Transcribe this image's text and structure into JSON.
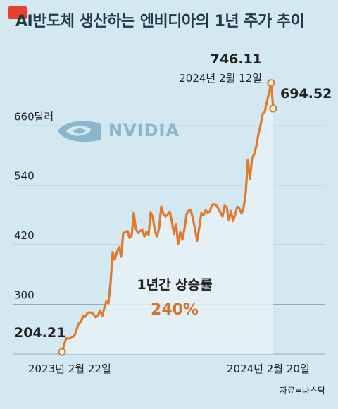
{
  "title": "AI반도체 생산하는 엔비디아의 1년 주가 추이",
  "logo_text": "NVIDIA",
  "source": "자료=나스닥",
  "annotations": {
    "start_value": "204.21",
    "peak_value": "746.11",
    "peak_date": "2024년 2월 12일",
    "end_value": "694.52",
    "increase_label": "1년간 상승률",
    "increase_value": "240%"
  },
  "chart_data": {
    "type": "area",
    "ylim": [
      200,
      760
    ],
    "ytick_labels": [
      {
        "value": 300,
        "label": "300"
      },
      {
        "value": 420,
        "label": "420"
      },
      {
        "value": 540,
        "label": "540"
      },
      {
        "value": 660,
        "label": "660달러"
      }
    ],
    "xtick_labels": [
      "2023년 2월 22일",
      "2024년 2월 20일"
    ],
    "x": [
      0,
      2,
      3,
      4,
      5,
      6,
      7,
      8,
      9,
      10,
      11,
      12,
      13,
      14,
      15,
      16,
      17,
      18,
      19,
      20,
      21,
      22,
      23,
      24,
      25,
      26,
      27,
      28,
      29,
      30,
      31,
      32,
      33,
      34,
      35,
      36,
      37,
      38,
      39,
      40,
      41,
      42,
      43,
      44,
      45,
      46,
      47,
      48,
      49,
      50,
      51,
      52,
      53,
      54,
      55,
      56,
      57,
      58,
      59,
      60,
      61,
      62,
      63,
      64,
      65,
      66,
      67,
      68,
      69,
      70,
      71,
      72,
      73,
      74,
      75,
      76,
      77,
      78,
      79,
      80,
      81,
      82,
      83,
      84,
      85,
      86,
      87,
      88,
      89,
      90,
      91,
      92,
      93,
      94,
      95,
      96,
      97,
      98,
      99,
      100
    ],
    "values": [
      204.21,
      232,
      231,
      232,
      234,
      238,
      250,
      262,
      265,
      276,
      275,
      282,
      284,
      283,
      280,
      274,
      277,
      288,
      276,
      292,
      306,
      302,
      343,
      405,
      390,
      405,
      415,
      396,
      444,
      445,
      448,
      434,
      439,
      484,
      452,
      444,
      448,
      450,
      437,
      446,
      440,
      486,
      475,
      448,
      437,
      454,
      497,
      482,
      477,
      481,
      487,
      467,
      442,
      462,
      422,
      445,
      430,
      452,
      482,
      489,
      489,
      472,
      451,
      428,
      455,
      484,
      479,
      490,
      485,
      487,
      500,
      502,
      500,
      493,
      485,
      477,
      499,
      496,
      469,
      488,
      468,
      481,
      497,
      493,
      483,
      495,
      525,
      591,
      553,
      595,
      602,
      619,
      643,
      661,
      684,
      688,
      708,
      726,
      746.11,
      694.52
    ]
  }
}
